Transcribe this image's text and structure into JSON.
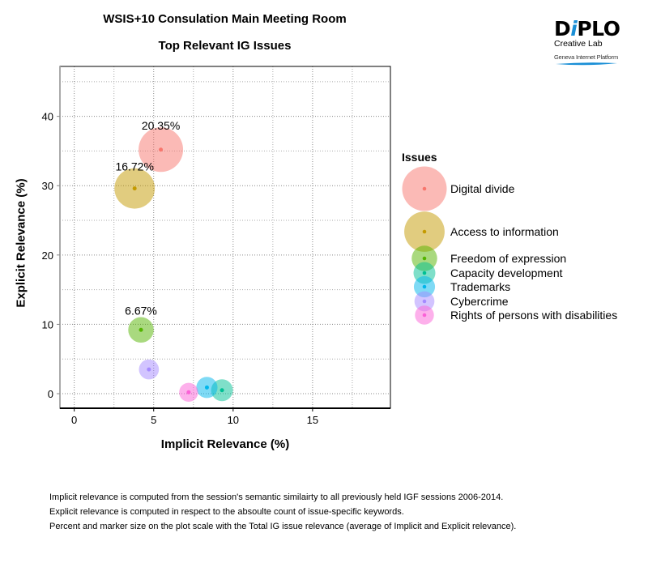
{
  "header": {
    "title_line1": "WSIS+10 Consulation Main Meeting Room",
    "title_line2": "Top Relevant IG Issues"
  },
  "logo": {
    "brand_pre": "D",
    "brand_i": "i",
    "brand_post": "PLO",
    "subtitle": "Creative Lab",
    "tagline": "Geneva Internet Platform",
    "accent_color": "#1a8fd6"
  },
  "axes": {
    "xlabel": "Implicit Relevance (%)",
    "ylabel": "Explicit Relevance (%)",
    "xticks": [
      "0",
      "5",
      "10",
      "15"
    ],
    "yticks": [
      "0",
      "10",
      "20",
      "30",
      "40"
    ]
  },
  "legend": {
    "title": "Issues",
    "items": [
      {
        "label": "Digital divide",
        "color": "#f8766d"
      },
      {
        "label": "Access to information",
        "color": "#c49a00"
      },
      {
        "label": "Freedom of expression",
        "color": "#53b400"
      },
      {
        "label": "Capacity development",
        "color": "#00c094"
      },
      {
        "label": "Trademarks",
        "color": "#00b6eb"
      },
      {
        "label": "Cybercrime",
        "color": "#a58aff"
      },
      {
        "label": "Rights of persons with disabilities",
        "color": "#fb61d7"
      }
    ]
  },
  "footnotes": [
    "Implicit relevance is computed from the session's semantic similairty to all previously held IGF sessions 2006-2014.",
    "Explicit relevance is computed in respect to the absoulte count of issue-specific keywords.",
    "Percent and marker size on the plot scale with the Total IG issue relevance (average of Implicit and Explicit relevance)."
  ],
  "chart_data": {
    "type": "scatter",
    "title": "WSIS+10 Consulation Main Meeting Room — Top Relevant IG Issues",
    "xlabel": "Implicit Relevance (%)",
    "ylabel": "Explicit Relevance (%)",
    "xlim": [
      -0.9,
      19.9
    ],
    "ylim": [
      -2.1,
      47.2
    ],
    "xticks": [
      0,
      5,
      10,
      15
    ],
    "yticks": [
      0,
      10,
      20,
      30,
      40
    ],
    "grid": true,
    "legend_position": "right",
    "legend_title": "Issues",
    "series": [
      {
        "name": "Digital divide",
        "x": 5.45,
        "y": 35.2,
        "size_pct": 20.35,
        "label": "20.35%",
        "color": "#f8766d"
      },
      {
        "name": "Access to information",
        "x": 3.8,
        "y": 29.6,
        "size_pct": 16.72,
        "label": "16.72%",
        "color": "#c49a00"
      },
      {
        "name": "Freedom of expression",
        "x": 4.2,
        "y": 9.2,
        "size_pct": 6.67,
        "label": "6.67%",
        "color": "#53b400"
      },
      {
        "name": "Capacity development",
        "x": 9.3,
        "y": 0.5,
        "size_pct": 4.9,
        "label": "",
        "color": "#00c094"
      },
      {
        "name": "Trademarks",
        "x": 8.35,
        "y": 0.9,
        "size_pct": 4.6,
        "label": "",
        "color": "#00b6eb"
      },
      {
        "name": "Cybercrime",
        "x": 4.7,
        "y": 3.5,
        "size_pct": 4.1,
        "label": "",
        "color": "#a58aff"
      },
      {
        "name": "Rights of persons with disabilities",
        "x": 7.2,
        "y": 0.2,
        "size_pct": 3.7,
        "label": "",
        "color": "#fb61d7"
      }
    ]
  }
}
